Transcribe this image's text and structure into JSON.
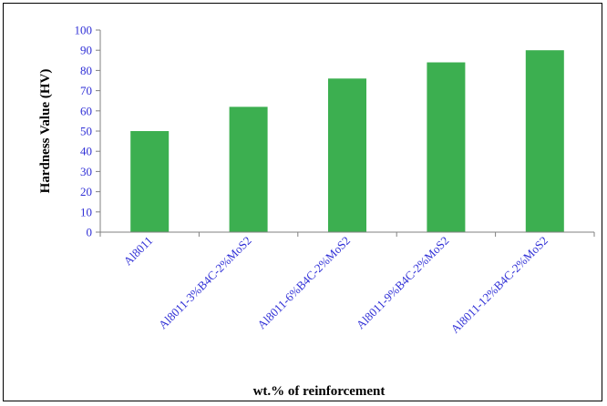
{
  "chart_data": {
    "type": "bar",
    "categories": [
      "Al8011",
      "Al8011-3%B4C-2%MoS2",
      "Al8011-6%B4C-2%MoS2",
      "Al8011-9%B4C-2%MoS2",
      "Al8011-12%B4C-2%MoS2"
    ],
    "values": [
      50,
      62,
      76,
      84,
      90
    ],
    "xlabel": "wt.% of reinforcement",
    "ylabel": "Hardness Value (HV)",
    "ylim": [
      0,
      100
    ],
    "yticks": [
      0,
      10,
      20,
      30,
      40,
      50,
      60,
      70,
      80,
      90,
      100
    ],
    "grid": false,
    "legend": "none",
    "colors": {
      "bar": "#3CAF50",
      "tick_label": "#2F2FD6",
      "axis": "#808080",
      "frame": "#000000"
    }
  }
}
